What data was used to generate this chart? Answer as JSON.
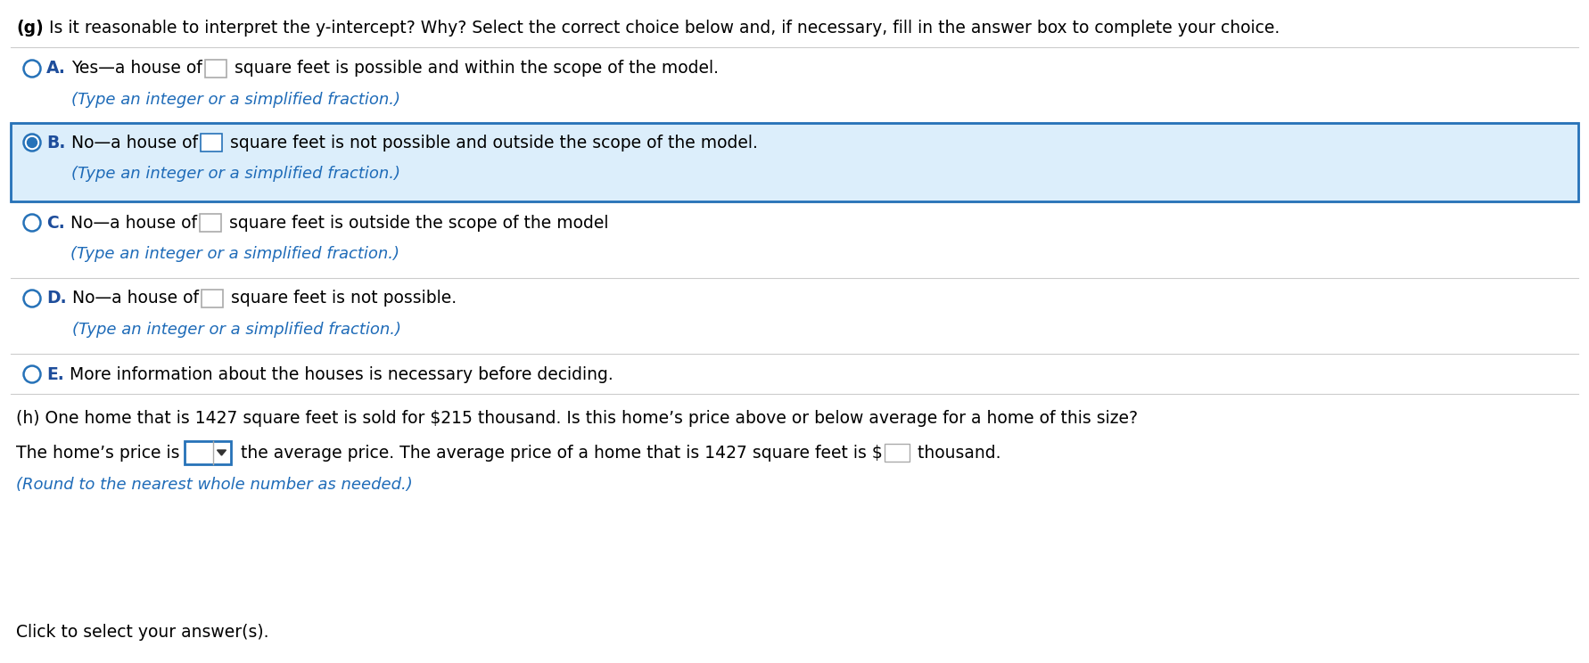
{
  "background_color": "#ffffff",
  "title_bold": "(g)",
  "title_rest": " Is it reasonable to interpret the y-intercept? Why? Select the correct choice below and, if necessary, fill in the answer box to complete your choice.",
  "options": [
    {
      "label": "A.",
      "radio_filled": false,
      "before_box": "Yes—a house of",
      "after_box": " square feet is possible and within the scope of the model.",
      "hint": "(Type an integer or a simplified fraction.)",
      "selected": false,
      "has_box": true
    },
    {
      "label": "B.",
      "radio_filled": true,
      "before_box": "No—a house of",
      "after_box": " square feet is not possible and outside the scope of the model.",
      "hint": "(Type an integer or a simplified fraction.)",
      "selected": true,
      "has_box": true
    },
    {
      "label": "C.",
      "radio_filled": false,
      "before_box": "No—a house of",
      "after_box": " square feet is outside the scope of the model",
      "hint": "(Type an integer or a simplified fraction.)",
      "selected": false,
      "has_box": true
    },
    {
      "label": "D.",
      "radio_filled": false,
      "before_box": "No—a house of",
      "after_box": " square feet is not possible.",
      "hint": "(Type an integer or a simplified fraction.)",
      "selected": false,
      "has_box": true
    },
    {
      "label": "E.",
      "radio_filled": false,
      "before_box": "More information about the houses is necessary before deciding.",
      "after_box": "",
      "hint": null,
      "selected": false,
      "has_box": false
    }
  ],
  "part_h_question": "(h) One home that is 1427 square feet is sold for $215 thousand. Is this home’s price above or below average for a home of this size?",
  "part_h_prefix": "The home’s price is",
  "part_h_middle": " the average price. The average price of a home that is 1427 square feet is $",
  "part_h_suffix": " thousand.",
  "part_h_note": "(Round to the nearest whole number as needed.)",
  "footer": "Click to select your answer(s).",
  "text_color": "#000000",
  "blue_dark": "#1c3d6b",
  "label_color": "#1e4d9b",
  "hint_color": "#1e6bb8",
  "selected_bg": "#dceefb",
  "selected_border": "#2672b8",
  "radio_color": "#2672b8",
  "box_border_A": "#aaaaaa",
  "box_border_B": "#2672b8",
  "box_border_CD": "#aaaaaa",
  "font_size": 13.5,
  "font_size_hint": 13.0,
  "font_size_title": 13.5
}
